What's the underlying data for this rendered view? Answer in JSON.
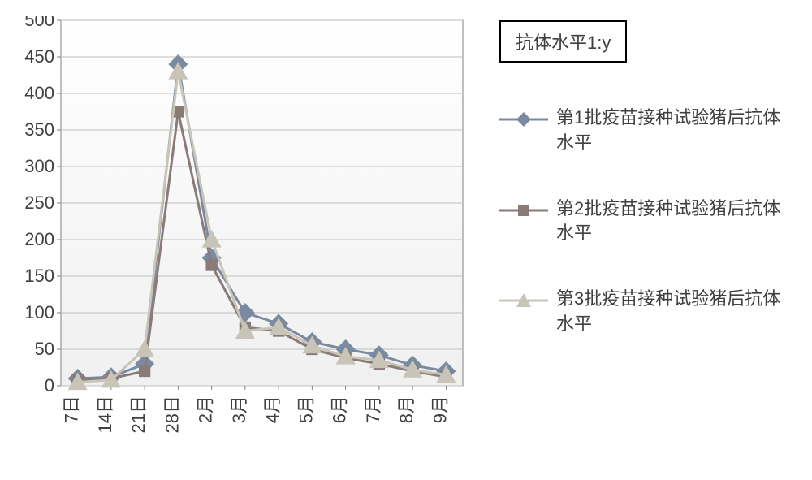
{
  "title_box": "抗体水平1:y",
  "chart": {
    "type": "line",
    "background_color": "#ffffff",
    "plot_background_gradient": {
      "top": "#ffffff",
      "bottom": "#f0f0f0"
    },
    "plot_border_color": "#808080",
    "grid_color": "#bfbfbf",
    "ylim": [
      0,
      500
    ],
    "ytick_step": 50,
    "yticks": [
      0,
      50,
      100,
      150,
      200,
      250,
      300,
      350,
      400,
      450,
      500
    ],
    "x_categories": [
      "7日",
      "14日",
      "21日",
      "28日",
      "2月",
      "3月",
      "4月",
      "5月",
      "6月",
      "7月",
      "8月",
      "9月"
    ],
    "axis_fontsize": 22,
    "axis_color": "#404040",
    "series": [
      {
        "name": "第1批疫苗接种试验猪后抗体水平",
        "color": "#7a8aa0",
        "marker": "diamond",
        "marker_size": 12,
        "line_width": 3,
        "values": [
          10,
          12,
          30,
          440,
          175,
          100,
          85,
          60,
          50,
          42,
          28,
          20
        ]
      },
      {
        "name": "第2批疫苗接种试验猪后抗体水平",
        "color": "#8a7a78",
        "marker": "square",
        "marker_size": 10,
        "line_width": 3,
        "values": [
          8,
          10,
          20,
          375,
          165,
          80,
          75,
          50,
          38,
          30,
          20,
          12
        ]
      },
      {
        "name": "第3批疫苗接种试验猪后抗体水平",
        "color": "#c8c4b8",
        "marker": "triangle",
        "marker_size": 12,
        "line_width": 3,
        "values": [
          5,
          8,
          50,
          430,
          200,
          75,
          80,
          55,
          40,
          35,
          22,
          15
        ]
      }
    ]
  },
  "legend_items": [
    "第1批疫苗接种试验猪后抗体水平",
    "第2批疫苗接种试验猪后抗体水平",
    "第3批疫苗接种试验猪后抗体水平"
  ]
}
